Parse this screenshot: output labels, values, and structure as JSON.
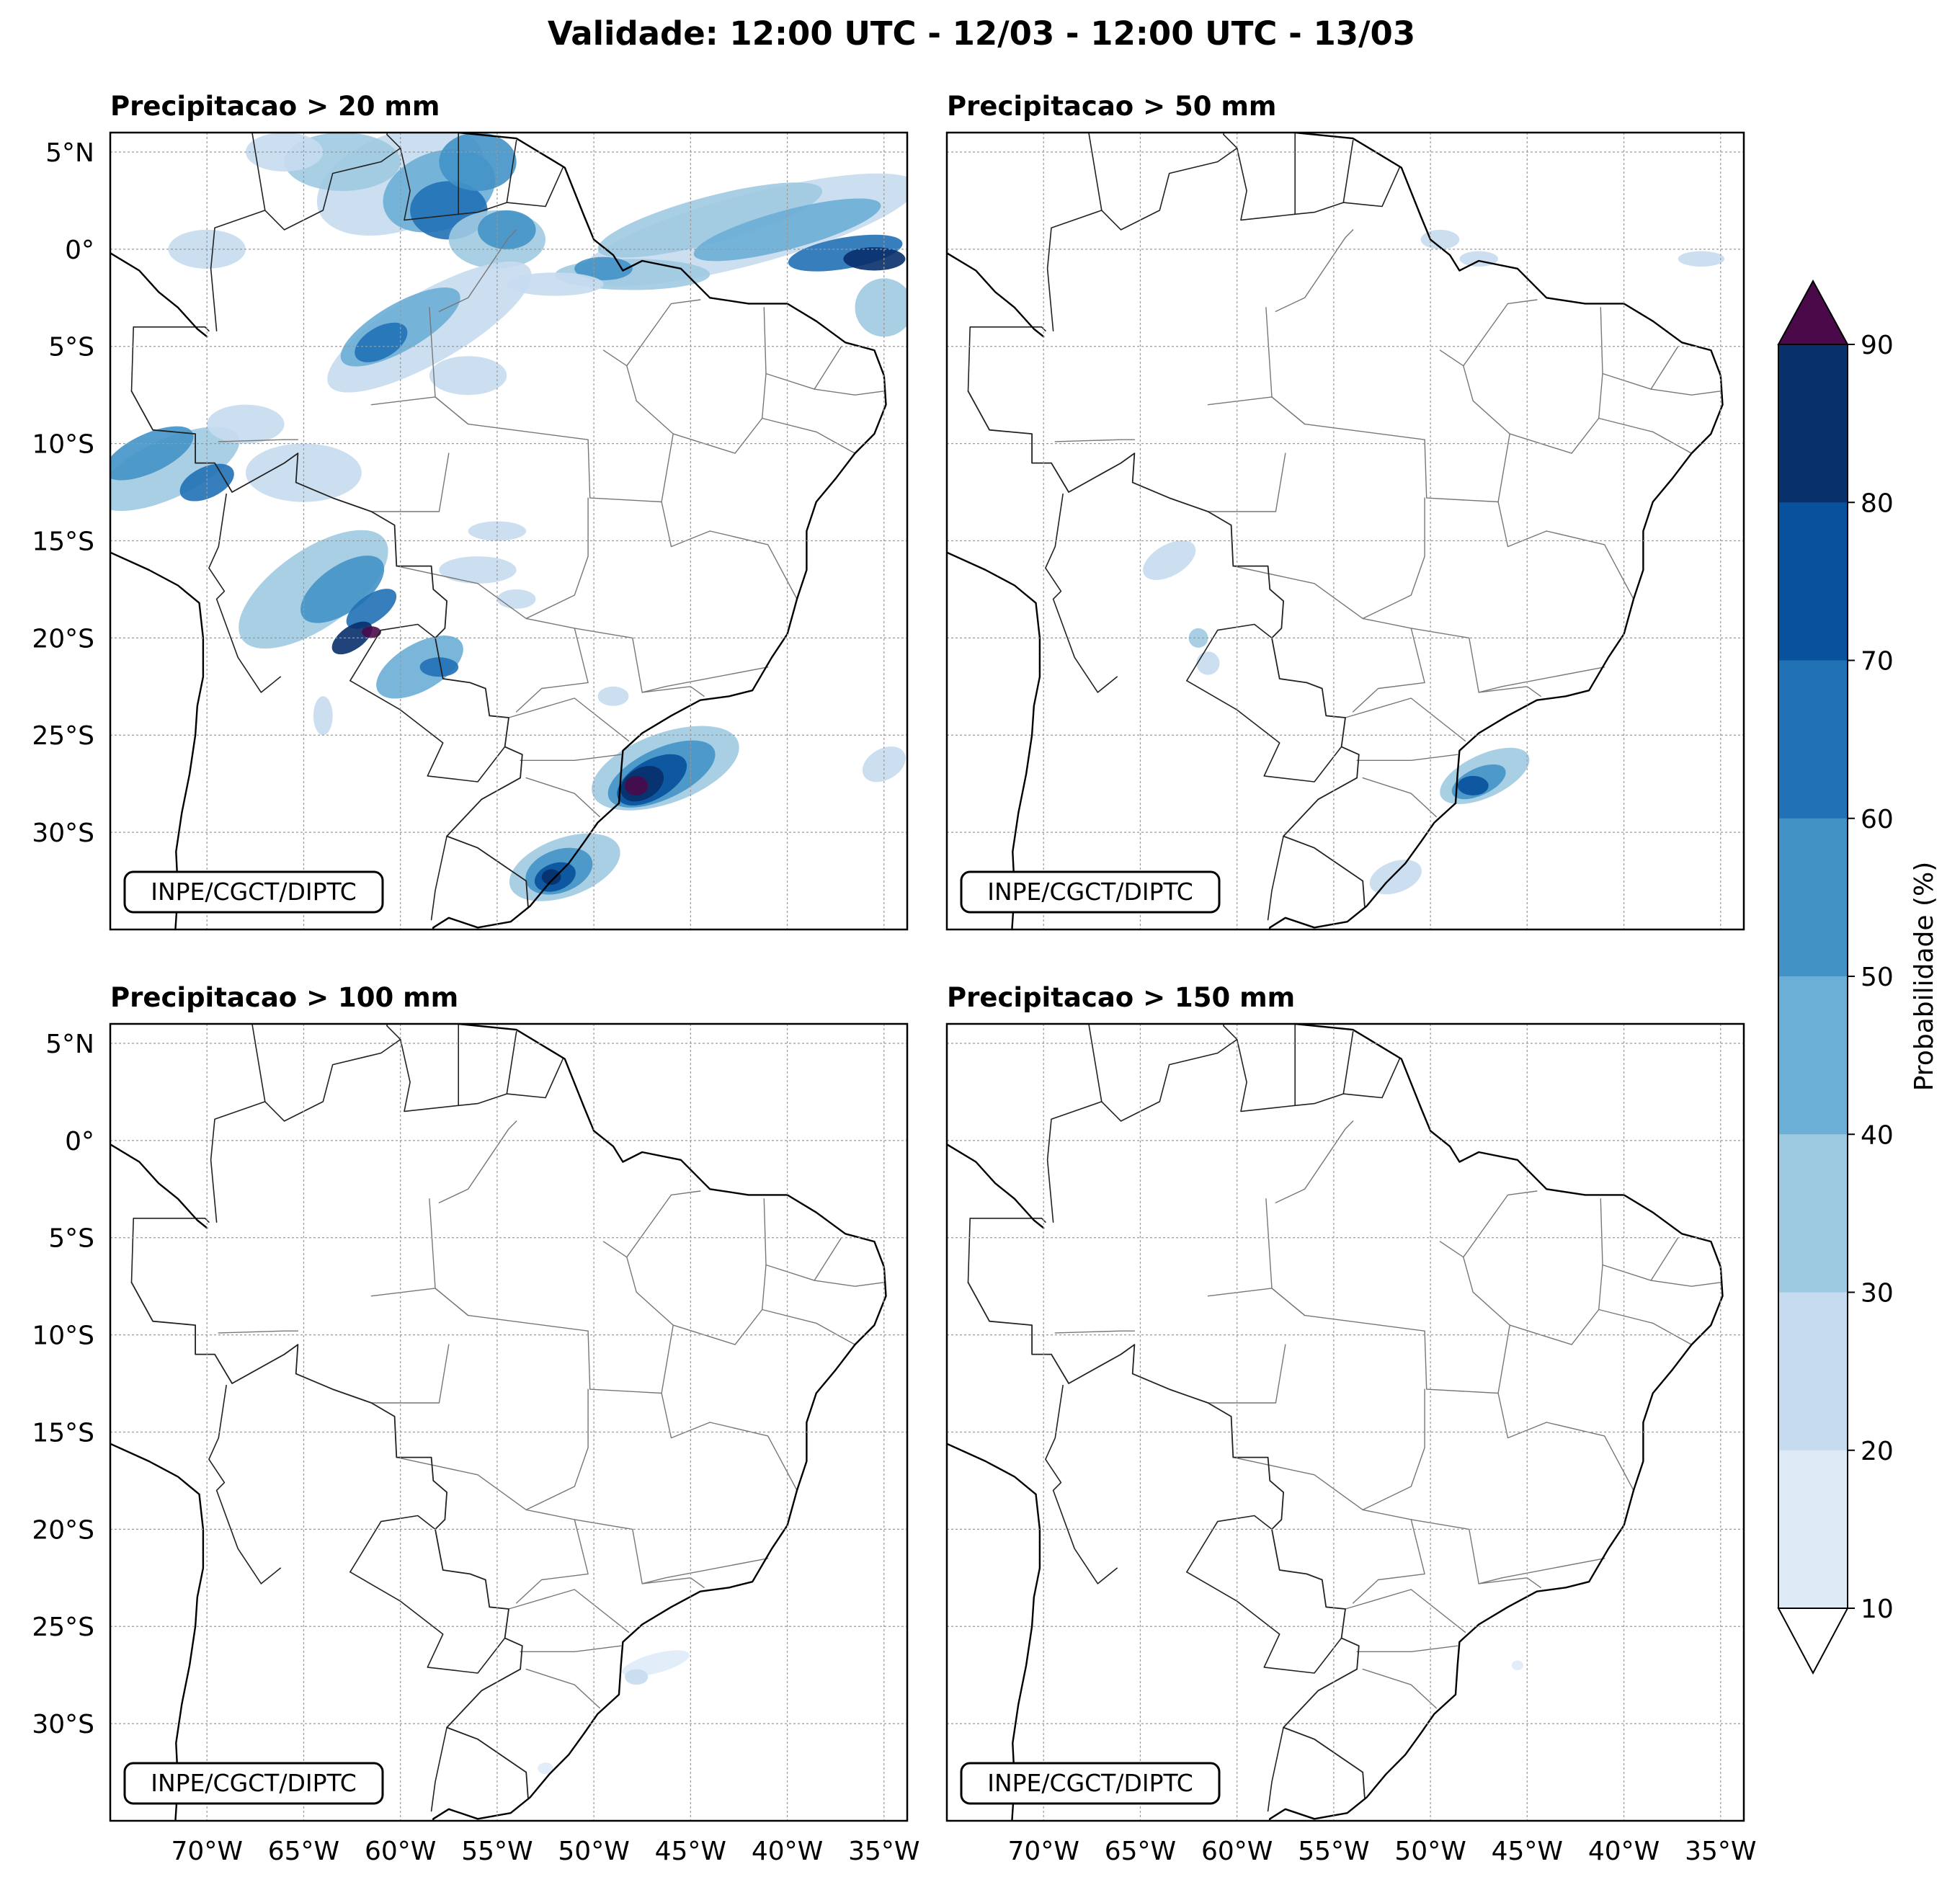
{
  "figure": {
    "title": "Validade: 12:00 UTC - 12/03 - 12:00 UTC - 13/03"
  },
  "panels": [
    {
      "title": "Precipitacao > 20 mm",
      "credit": "INPE/CGCT/DIPTC"
    },
    {
      "title": "Precipitacao > 50 mm",
      "credit": "INPE/CGCT/DIPTC"
    },
    {
      "title": "Precipitacao > 100 mm",
      "credit": "INPE/CGCT/DIPTC"
    },
    {
      "title": "Precipitacao > 150 mm",
      "credit": "INPE/CGCT/DIPTC"
    }
  ],
  "axes": {
    "lat_labels": [
      "5°N",
      "0°",
      "5°S",
      "10°S",
      "15°S",
      "20°S",
      "25°S",
      "30°S"
    ],
    "lon_labels": [
      "70°W",
      "65°W",
      "60°W",
      "55°W",
      "50°W",
      "45°W",
      "40°W",
      "35°W"
    ]
  },
  "colorbar": {
    "label": "Probabilidade (%)",
    "ticks": [
      "10",
      "20",
      "30",
      "40",
      "50",
      "60",
      "70",
      "80",
      "90"
    ],
    "colors": [
      "#deebf7",
      "#c6dbef",
      "#9ecae1",
      "#6baed6",
      "#4292c6",
      "#2171b5",
      "#08519c",
      "#08306b"
    ],
    "over_color": "#4a0a4a",
    "under_color": "#ffffff"
  },
  "map_style": {
    "ocean": "#ffffff",
    "land": "#ffffff",
    "coastline": "#000000",
    "state_borders": "#777777",
    "gridlines": "#999999"
  }
}
